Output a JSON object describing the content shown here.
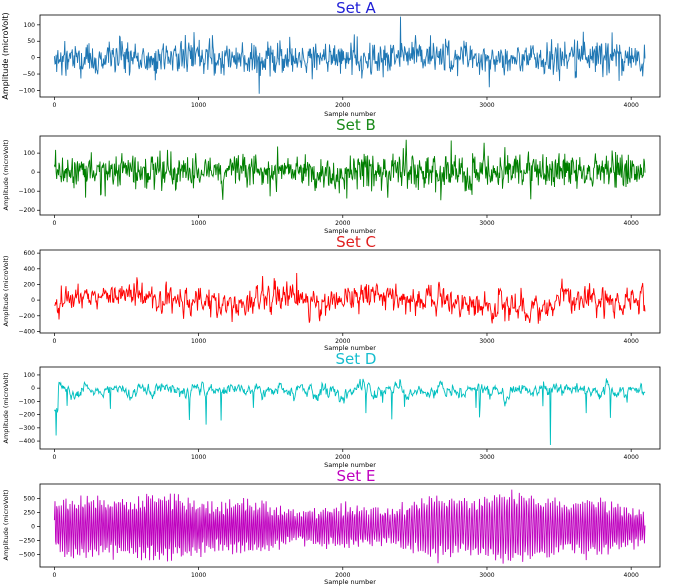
{
  "chart_data": [
    {
      "type": "line",
      "title": "Set A",
      "title_color": "#1f1fd6",
      "line_color": "#1f77b4",
      "xlabel": "Sample number",
      "ylabel": "Amplitude (microVolt)",
      "xlim": [
        -100,
        4200
      ],
      "ylim": [
        -120,
        130
      ],
      "xticks": [
        0,
        1000,
        2000,
        3000,
        4000
      ],
      "yticks": [
        -100,
        -50,
        0,
        50,
        100
      ],
      "n_samples": 4097,
      "signal_character": "noisy, amplitude mostly within ±60, peaks near +125 and -110",
      "grid": false
    },
    {
      "type": "line",
      "title": "Set B",
      "title_color": "#1a8a1a",
      "line_color": "#007f00",
      "xlabel": "Sample number",
      "ylabel": "Amplitude (microVolt)",
      "xlim": [
        -100,
        4200
      ],
      "ylim": [
        -225,
        190
      ],
      "xticks": [
        0,
        1000,
        2000,
        3000,
        4000
      ],
      "yticks": [
        -200,
        -100,
        0,
        100
      ],
      "n_samples": 4097,
      "signal_character": "noisy, amplitude mostly within ±100, peaks near +170 and -210",
      "grid": false
    },
    {
      "type": "line",
      "title": "Set C",
      "title_color": "#e02020",
      "line_color": "#ff0000",
      "xlabel": "Sample number",
      "ylabel": "Amplitude (microVolt)",
      "xlim": [
        -100,
        4200
      ],
      "ylim": [
        -420,
        640
      ],
      "xticks": [
        0,
        1000,
        2000,
        3000,
        4000
      ],
      "yticks": [
        -400,
        -200,
        0,
        200,
        400,
        600
      ],
      "n_samples": 4097,
      "signal_character": "slow noisy waves, amplitude mostly within ±250, peak near +620 around sample 1680",
      "grid": false
    },
    {
      "type": "line",
      "title": "Set D",
      "title_color": "#17becf",
      "line_color": "#00bfbf",
      "xlabel": "Sample number",
      "ylabel": "Amplitude (microVolt)",
      "xlim": [
        -100,
        4200
      ],
      "ylim": [
        -460,
        160
      ],
      "xticks": [
        0,
        1000,
        2000,
        3000,
        4000
      ],
      "yticks": [
        -400,
        -300,
        -200,
        -100,
        0,
        100
      ],
      "n_samples": 4097,
      "signal_character": "baseline near 0 with frequent negative spikes to -250, deepest near -430 around sample 3440",
      "grid": false
    },
    {
      "type": "line",
      "title": "Set E",
      "title_color": "#bf00bf",
      "line_color": "#bf00bf",
      "xlabel": "Sample number",
      "ylabel": "Amplitude (microVolt)",
      "xlim": [
        -100,
        4200
      ],
      "ylim": [
        -720,
        760
      ],
      "xticks": [
        0,
        1000,
        2000,
        3000,
        4000
      ],
      "yticks": [
        -500,
        -250,
        0,
        250,
        500
      ],
      "n_samples": 4097,
      "signal_character": "dense rhythmic oscillation, amplitude about ±500, peaks near ±650",
      "grid": false
    }
  ]
}
